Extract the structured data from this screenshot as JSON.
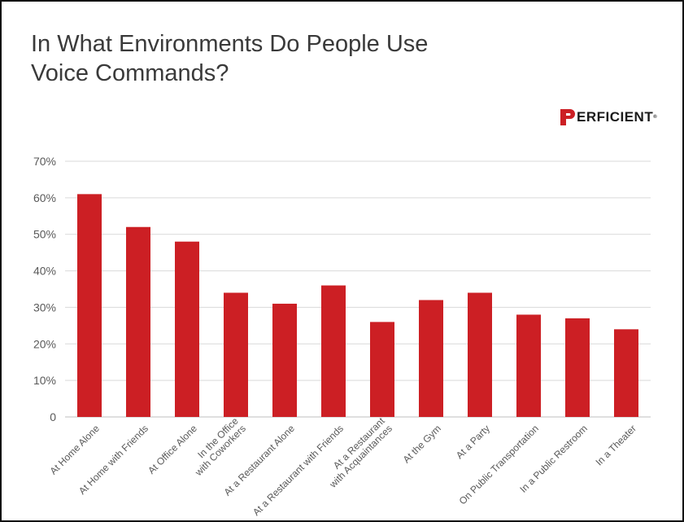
{
  "chart_data": {
    "type": "bar",
    "title": "In What Environments Do People Use Voice Commands?",
    "xlabel": "",
    "ylabel": "",
    "ylim": [
      0,
      70
    ],
    "yticks": [
      "0",
      "10%",
      "20%",
      "30%",
      "40%",
      "50%",
      "60%",
      "70%"
    ],
    "ytick_values": [
      0,
      10,
      20,
      30,
      40,
      50,
      60,
      70
    ],
    "grid": true,
    "bar_color": "#cc1f24",
    "categories": [
      "At Home Alone",
      "At Home with Friends",
      "At Office Alone",
      [
        "In the Office",
        "with Coworkers"
      ],
      "At a Restaurant Alone",
      "At a Restaurant with Friends",
      [
        "At a Restaurant",
        "with Acquaintances"
      ],
      "At the Gym",
      "At a Party",
      "On Public Transportation",
      "In a Public Restroom",
      "In a Theater"
    ],
    "values": [
      61,
      52,
      48,
      34,
      31,
      36,
      26,
      32,
      34,
      28,
      27,
      24
    ]
  },
  "title_lines": [
    "In What Environments Do People Use",
    "Voice Commands?"
  ],
  "logo": {
    "text": "ERFICIENT",
    "tm": "®",
    "mark_color": "#cc1f24"
  }
}
